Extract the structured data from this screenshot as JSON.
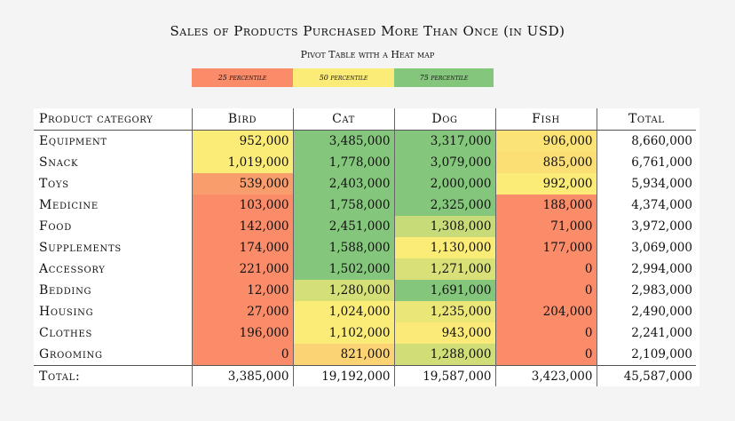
{
  "chart_data": {
    "type": "table",
    "title": "Sales of Products Purchased More Than Once (in USD)",
    "subtitle": "Pivot Table with a Heat map",
    "legend": [
      {
        "label": "25 percentile",
        "color": "#fa8c6a"
      },
      {
        "label": "50 percentile",
        "color": "#fbeb77"
      },
      {
        "label": "75 percentile",
        "color": "#84c67b"
      }
    ],
    "columns": [
      "Product category",
      "Bird",
      "Cat",
      "Dog",
      "Fish",
      "Total"
    ],
    "rows": [
      {
        "category": "Equipment",
        "values": [
          952000,
          3485000,
          3317000,
          906000
        ],
        "display": [
          "952,000",
          "3,485,000",
          "3,317,000",
          "906,000"
        ],
        "total": "8,660,000"
      },
      {
        "category": "Snack",
        "values": [
          1019000,
          1778000,
          3079000,
          885000
        ],
        "display": [
          "1,019,000",
          "1,778,000",
          "3,079,000",
          "885,000"
        ],
        "total": "6,761,000"
      },
      {
        "category": "Toys",
        "values": [
          539000,
          2403000,
          2000000,
          992000
        ],
        "display": [
          "539,000",
          "2,403,000",
          "2,000,000",
          "992,000"
        ],
        "total": "5,934,000"
      },
      {
        "category": "Medicine",
        "values": [
          103000,
          1758000,
          2325000,
          188000
        ],
        "display": [
          "103,000",
          "1,758,000",
          "2,325,000",
          "188,000"
        ],
        "total": "4,374,000"
      },
      {
        "category": "Food",
        "values": [
          142000,
          2451000,
          1308000,
          71000
        ],
        "display": [
          "142,000",
          "2,451,000",
          "1,308,000",
          "71,000"
        ],
        "total": "3,972,000"
      },
      {
        "category": "Supplements",
        "values": [
          174000,
          1588000,
          1130000,
          177000
        ],
        "display": [
          "174,000",
          "1,588,000",
          "1,130,000",
          "177,000"
        ],
        "total": "3,069,000"
      },
      {
        "category": "Accessory",
        "values": [
          221000,
          1502000,
          1271000,
          0
        ],
        "display": [
          "221,000",
          "1,502,000",
          "1,271,000",
          "0"
        ],
        "total": "2,994,000"
      },
      {
        "category": "Bedding",
        "values": [
          12000,
          1280000,
          1691000,
          0
        ],
        "display": [
          "12,000",
          "1,280,000",
          "1,691,000",
          "0"
        ],
        "total": "2,983,000"
      },
      {
        "category": "Housing",
        "values": [
          27000,
          1024000,
          1235000,
          204000
        ],
        "display": [
          "27,000",
          "1,024,000",
          "1,235,000",
          "204,000"
        ],
        "total": "2,490,000"
      },
      {
        "category": "Clothes",
        "values": [
          196000,
          1102000,
          943000,
          0
        ],
        "display": [
          "196,000",
          "1,102,000",
          "943,000",
          "0"
        ],
        "total": "2,241,000"
      },
      {
        "category": "Grooming",
        "values": [
          0,
          821000,
          1288000,
          0
        ],
        "display": [
          "0",
          "821,000",
          "1,288,000",
          "0"
        ],
        "total": "2,109,000"
      }
    ],
    "totals_row": {
      "label": "Total:",
      "values": [
        "3,385,000",
        "19,192,000",
        "19,587,000",
        "3,423,000",
        "45,587,000"
      ]
    }
  }
}
